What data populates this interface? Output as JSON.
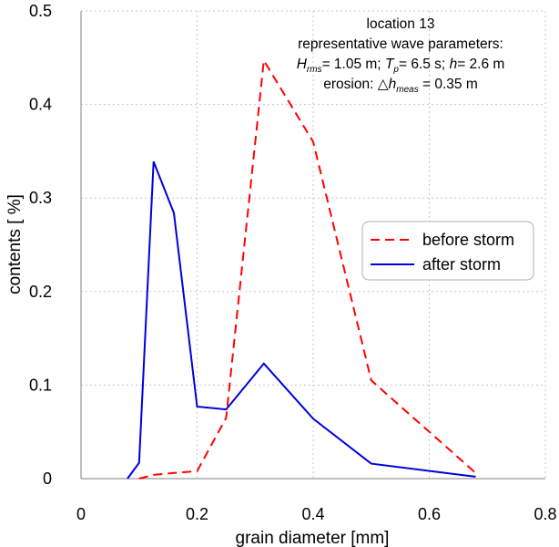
{
  "chart_data": {
    "type": "line",
    "xlabel": "grain diameter [mm]",
    "ylabel": "contents [ %]",
    "xlim": [
      0,
      0.8
    ],
    "ylim": [
      0,
      0.5
    ],
    "xticks": [
      0,
      0.2,
      0.4,
      0.6,
      0.8
    ],
    "xtick_labels": [
      "0",
      "0.2",
      "0.4",
      "0.6",
      "0.8"
    ],
    "yticks": [
      0,
      0.1,
      0.2,
      0.3,
      0.4,
      0.5
    ],
    "ytick_labels": [
      "0",
      "0.1",
      "0.2",
      "0.3",
      "0.4",
      "0.5"
    ],
    "grid": true,
    "legend_position": "center-right",
    "annotation": {
      "line1": "location 13",
      "line2": "representative wave parameters:",
      "hrms_symbol": "H",
      "hrms_sub": "rms",
      "hrms_value": "= 1.05 m;",
      "tp_symbol": "T",
      "tp_sub": "p",
      "tp_value": "= 6.5 s;",
      "h_symbol": "h",
      "h_value": "= 2.6 m",
      "erosion_prefix": "erosion: ",
      "delta_symbol": "△",
      "dh_symbol": "h",
      "dh_sub": "meas",
      "dh_value": " =  0.35 m"
    },
    "series": [
      {
        "name": "before storm",
        "color": "#ff0000",
        "dash": "dashed",
        "points": [
          [
            0.1,
            0.0
          ],
          [
            0.125,
            0.004
          ],
          [
            0.16,
            0.006
          ],
          [
            0.2,
            0.008
          ],
          [
            0.25,
            0.065
          ],
          [
            0.315,
            0.447
          ],
          [
            0.4,
            0.36
          ],
          [
            0.5,
            0.105
          ],
          [
            0.68,
            0.006
          ]
        ]
      },
      {
        "name": "after storm",
        "color": "#0000dd",
        "dash": "solid",
        "points": [
          [
            0.08,
            0.0
          ],
          [
            0.1,
            0.017
          ],
          [
            0.125,
            0.339
          ],
          [
            0.16,
            0.284
          ],
          [
            0.2,
            0.077
          ],
          [
            0.25,
            0.074
          ],
          [
            0.315,
            0.123
          ],
          [
            0.4,
            0.064
          ],
          [
            0.5,
            0.016
          ],
          [
            0.68,
            0.002
          ]
        ]
      }
    ]
  }
}
